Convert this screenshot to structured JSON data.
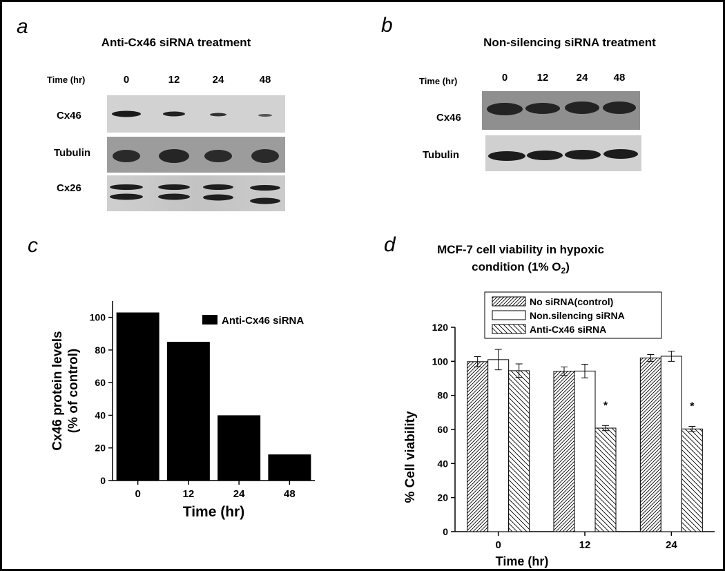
{
  "panels": {
    "a": {
      "letter": "a",
      "title": "Anti-Cx46 siRNA treatment",
      "time_label": "Time (hr)",
      "times": [
        "0",
        "12",
        "24",
        "48"
      ],
      "rows": [
        "Cx46",
        "Tubulin",
        "Cx26"
      ]
    },
    "b": {
      "letter": "b",
      "title": "Non-silencing siRNA treatment",
      "time_label": "Time (hr)",
      "times": [
        "0",
        "12",
        "24",
        "48"
      ],
      "rows": [
        "Cx46",
        "Tubulin"
      ]
    },
    "c": {
      "letter": "c"
    },
    "d": {
      "letter": "d",
      "title_line1": "MCF-7 cell viability in hypoxic",
      "title_line2_prefix": "condition (1% O",
      "title_line2_sub": "2",
      "title_line2_suffix": ")"
    }
  },
  "chart_data": [
    {
      "panel": "c",
      "type": "bar",
      "categories": [
        "0",
        "12",
        "24",
        "48"
      ],
      "series": [
        {
          "name": "Anti-Cx46 siRNA",
          "values": [
            103,
            85,
            40,
            16
          ],
          "fill": "solid-black"
        }
      ],
      "xlabel": "Time (hr)",
      "ylabel_line1": "Cx46 protein levels",
      "ylabel_line2": "(% of control)",
      "ylim": [
        0,
        110
      ],
      "yticks": [
        "0",
        "20",
        "40",
        "60",
        "80",
        "100"
      ],
      "grid": false,
      "legend": "top-right"
    },
    {
      "panel": "d",
      "type": "bar",
      "categories": [
        "0",
        "12",
        "24"
      ],
      "series": [
        {
          "name": "No siRNA(control)",
          "values": [
            99.8,
            94.2,
            102
          ],
          "errors": [
            3,
            2.5,
            2
          ],
          "fill": "dense-diagonal"
        },
        {
          "name": "Non.silencing siRNA",
          "values": [
            101,
            94.3,
            103
          ],
          "errors": [
            6,
            4,
            3
          ],
          "fill": "white"
        },
        {
          "name": "Anti-Cx46 siRNA",
          "values": [
            94.5,
            60.8,
            60.3
          ],
          "errors": [
            4,
            1.5,
            1.5
          ],
          "fill": "sparse-back-diagonal"
        }
      ],
      "significance": [
        {
          "category": "12",
          "series": "Anti-Cx46 siRNA",
          "mark": "*"
        },
        {
          "category": "24",
          "series": "Anti-Cx46 siRNA",
          "mark": "*"
        }
      ],
      "xlabel": "Time (hr)",
      "ylabel": "% Cell viability",
      "ylim": [
        0,
        120
      ],
      "yticks": [
        "0",
        "20",
        "40",
        "60",
        "80",
        "100",
        "120"
      ],
      "grid": false,
      "legend": "top"
    }
  ]
}
